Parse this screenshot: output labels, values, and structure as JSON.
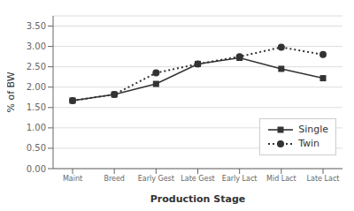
{
  "chart_data": {
    "type": "line",
    "categories": [
      "Maint",
      "Breed",
      "Early Gest",
      "Late Gest",
      "Early Lact",
      "Mid Lact",
      "Late Lact"
    ],
    "series": [
      {
        "name": "Single",
        "color": "#333333",
        "values": [
          1.67,
          1.82,
          2.08,
          2.57,
          2.72,
          2.45,
          2.22
        ],
        "marker": "square",
        "line_style": "solid"
      },
      {
        "name": "Twin",
        "color": "#333333",
        "values": [
          1.67,
          1.82,
          2.35,
          2.57,
          2.75,
          2.98,
          2.8
        ],
        "marker": "circle",
        "line_style": "dotted"
      }
    ],
    "xlabel": "Production Stage",
    "ylabel": "% of BW",
    "ylim": [
      0.0,
      3.75
    ],
    "yticks": [
      {
        "value": 0.0,
        "label": "0.00"
      },
      {
        "value": 0.5,
        "label": "0.50"
      },
      {
        "value": 1.0,
        "label": "1.00"
      },
      {
        "value": 1.5,
        "label": "1.50"
      },
      {
        "value": 2.0,
        "label": "2.00"
      },
      {
        "value": 2.5,
        "label": "2.50"
      },
      {
        "value": 3.0,
        "label": "3.00"
      },
      {
        "value": 3.5,
        "label": "3.50"
      }
    ],
    "grid": "y",
    "legend": "lower right"
  }
}
